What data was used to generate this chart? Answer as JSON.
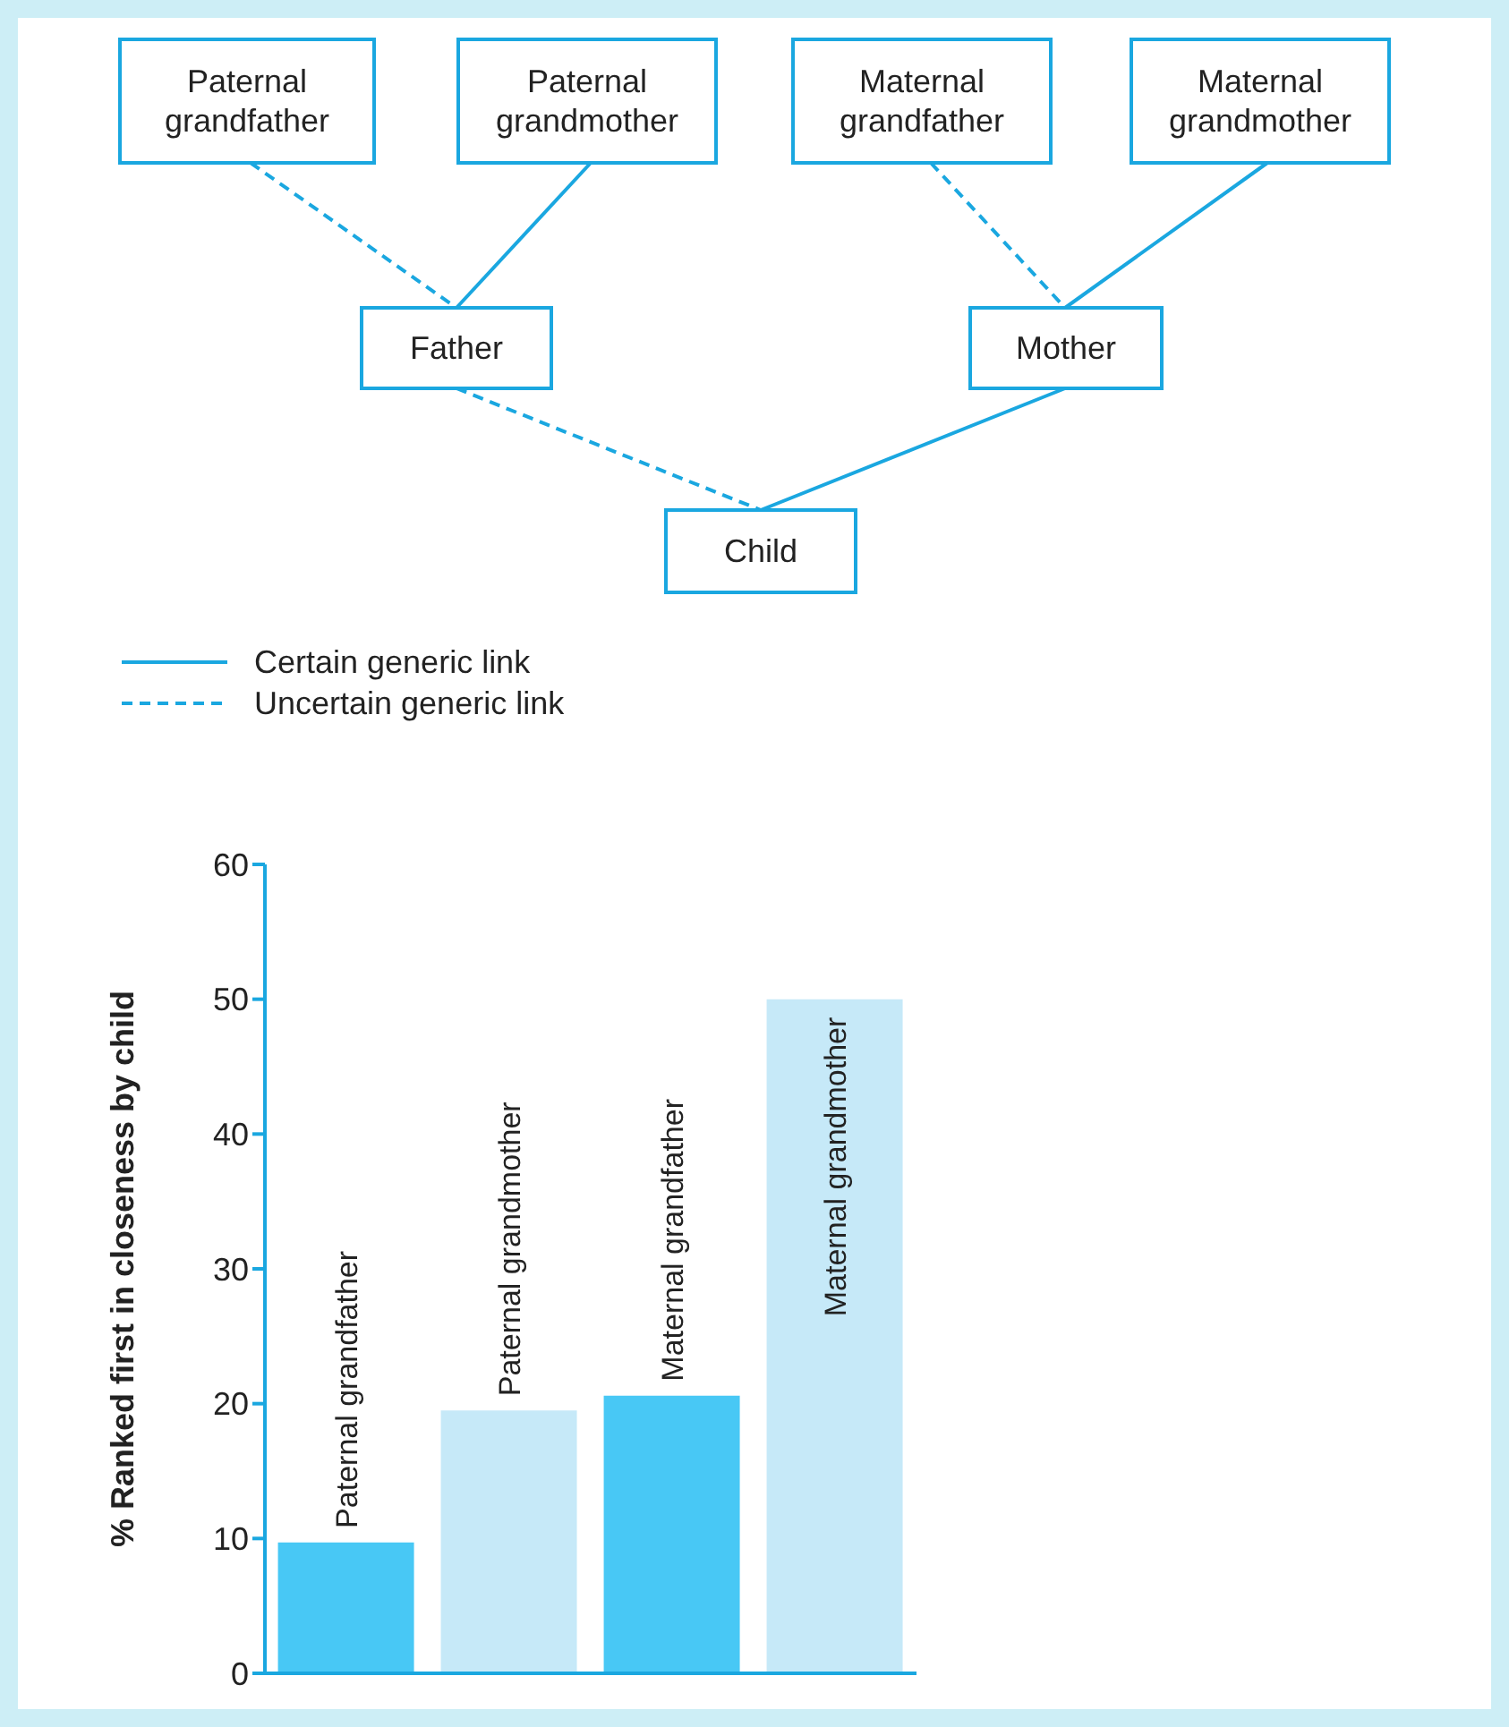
{
  "chart_data": [
    {
      "type": "other",
      "annotations": [
        "Paternal\ngrandfather",
        "Paternal\ngrandmother",
        "Maternal\ngrandfather",
        "Maternal\ngrandmother",
        "Father",
        "Mother",
        "Child",
        "Certain generic link",
        "Uncertain generic link"
      ]
    },
    {
      "type": "bar",
      "ylabel": "% Ranked first in closeness by child",
      "categories": [
        "Paternal grandfather",
        "Paternal grandmother",
        "Maternal grandfather",
        "Maternal grandmother"
      ],
      "values": [
        9.7,
        19.5,
        20.6,
        50
      ],
      "colors": [
        "#48c8f5",
        "#c6e9f8",
        "#48c8f5",
        "#c6e9f8"
      ],
      "ylim": [
        0,
        60
      ],
      "yticks": [
        0,
        10,
        20,
        30,
        40,
        50,
        60
      ],
      "grid": false
    }
  ]
}
